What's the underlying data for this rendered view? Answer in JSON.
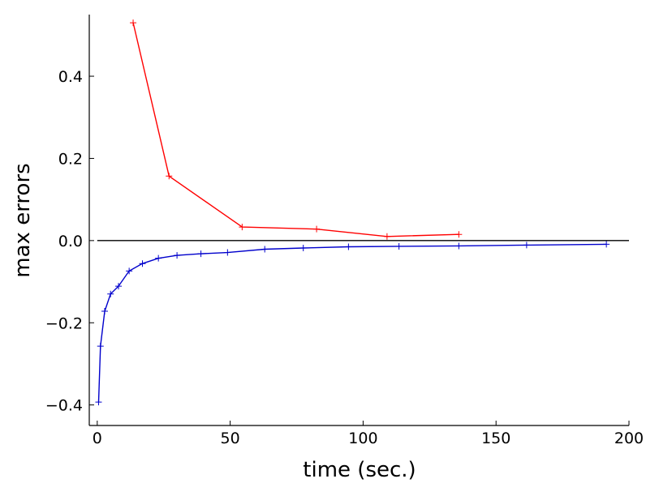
{
  "chart_data": {
    "type": "line",
    "title": "",
    "xlabel": "time (sec.)",
    "ylabel": "max errors",
    "xlim": [
      -3,
      200
    ],
    "ylim": [
      -0.45,
      0.55
    ],
    "xticks": [
      0,
      50,
      100,
      150,
      200
    ],
    "xtick_labels": [
      "0",
      "50",
      "100",
      "150",
      "200"
    ],
    "yticks": [
      -0.4,
      -0.2,
      0.0,
      0.2,
      0.4
    ],
    "ytick_labels": [
      "−0.4",
      "−0.2",
      "0.0",
      "0.2",
      "0.4"
    ],
    "grid": false,
    "reference_line": {
      "y": 0.0,
      "color": "#000000"
    },
    "series": [
      {
        "color": "#ff0000",
        "marker": "+",
        "x": [
          13.5,
          27,
          54.5,
          82.5,
          109,
          136
        ],
        "y": [
          0.53,
          0.157,
          0.033,
          0.028,
          0.01,
          0.015
        ]
      },
      {
        "color": "#0000cc",
        "marker": "+",
        "x": [
          0.5,
          1.2,
          2.8,
          5,
          8,
          12,
          17,
          23,
          30,
          39,
          49,
          63,
          77.5,
          94.5,
          113.5,
          136,
          161.5,
          191.5
        ],
        "y": [
          -0.393,
          -0.257,
          -0.172,
          -0.13,
          -0.111,
          -0.074,
          -0.056,
          -0.043,
          -0.036,
          -0.032,
          -0.029,
          -0.021,
          -0.018,
          -0.015,
          -0.014,
          -0.013,
          -0.011,
          -0.009
        ]
      }
    ]
  }
}
